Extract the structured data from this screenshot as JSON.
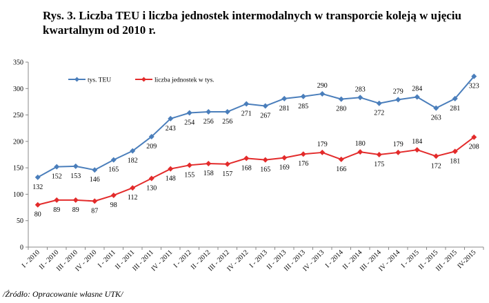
{
  "title": "Rys. 3. Liczba TEU i liczba jednostek intermodalnych w transporcie koleją w ujęciu kwartalnym od 2010 r.",
  "source": "/Źródło: Opracowanie własne UTK/",
  "chart_data": {
    "type": "line",
    "categories": [
      "I - 2010",
      "II - 2010",
      "III - 2010",
      "IV - 2010",
      "I - 2011",
      "II - 2011",
      "III - 2011",
      "IV - 2011",
      "I - 2012",
      "II - 2012",
      "III - 2012",
      "IV - 2012",
      "I - 2013",
      "II - 2013",
      "III - 2013",
      "IV - 2013",
      "I - 2014",
      "II - 2014",
      "III - 2014",
      "IV - 2014",
      "I - 2015",
      "II - 2015",
      "III - 2015",
      "IV-2015"
    ],
    "series": [
      {
        "name": "tys. TEU",
        "color": "#4a7ebb",
        "marker": "diamond",
        "values": [
          132,
          152,
          153,
          146,
          165,
          182,
          209,
          243,
          254,
          256,
          256,
          271,
          267,
          281,
          285,
          290,
          280,
          283,
          272,
          279,
          284,
          263,
          281,
          323
        ],
        "label_position": [
          "below",
          "below",
          "below",
          "below",
          "below",
          "below",
          "below",
          "below",
          "below",
          "below",
          "below",
          "below",
          "below",
          "below",
          "below",
          "above",
          "below",
          "above",
          "below",
          "above",
          "above",
          "below",
          "below",
          "below"
        ]
      },
      {
        "name": "liczba jednostek w tys.",
        "color": "#e32b2b",
        "marker": "diamond",
        "values": [
          80,
          89,
          89,
          87,
          98,
          112,
          130,
          148,
          155,
          158,
          157,
          168,
          165,
          169,
          176,
          179,
          166,
          180,
          175,
          179,
          184,
          172,
          181,
          208
        ],
        "label_position": [
          "below",
          "below",
          "below",
          "below",
          "below",
          "below",
          "below",
          "below",
          "below",
          "below",
          "below",
          "below",
          "below",
          "below",
          "below",
          "above",
          "below",
          "above",
          "below",
          "above",
          "above",
          "below",
          "below",
          "below"
        ]
      }
    ],
    "ylim": [
      0,
      350
    ],
    "yticks": [
      0,
      50,
      100,
      150,
      200,
      250,
      300,
      350
    ],
    "grid": false,
    "legend": "top-left"
  }
}
